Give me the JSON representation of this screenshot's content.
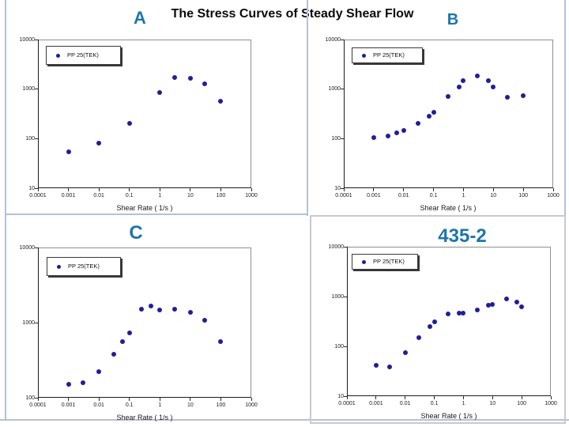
{
  "slide": {
    "title": "The Stress Curves of Steady Shear Flow",
    "heading_color": "#1d76ab",
    "border_color": "#b6c0da",
    "panel_border_color": "#c9c9cf",
    "background": "#ffffff",
    "marker_color": "#1f1f96"
  },
  "chart_data": [
    {
      "type": "scatter",
      "id": "A",
      "panel_label": "A",
      "legend": "PP 25(TEK)",
      "xlabel": "Shear Rate ( 1/s )",
      "xlim": [
        0.0001,
        1000
      ],
      "ylim": [
        10,
        10000
      ],
      "x_ticks": [
        "0.0001",
        "0.001",
        "0.01",
        "0.1",
        "1",
        "10",
        "100",
        "1000"
      ],
      "y_ticks": [
        "10",
        "100",
        "1000",
        "10000"
      ],
      "x": [
        0.001,
        0.01,
        0.1,
        1,
        3,
        10,
        30,
        100
      ],
      "y": [
        55,
        80,
        200,
        850,
        1700,
        1650,
        1300,
        560
      ]
    },
    {
      "type": "scatter",
      "id": "B",
      "panel_label": "B",
      "legend": "PP 25(TEK)",
      "xlabel": "Shear Rate ( 1/s )",
      "xlim": [
        0.0001,
        1000
      ],
      "ylim": [
        10,
        10000
      ],
      "x_ticks": [
        "0.0001",
        "0.001",
        "0.01",
        "0.1",
        "1",
        "10",
        "100",
        "1000"
      ],
      "y_ticks": [
        "10",
        "100",
        "1000",
        "10000"
      ],
      "x": [
        0.001,
        0.003,
        0.006,
        0.01,
        0.03,
        0.07,
        0.1,
        0.3,
        0.7,
        1,
        3,
        7,
        10,
        30,
        100
      ],
      "y": [
        105,
        112,
        130,
        146,
        205,
        285,
        340,
        710,
        1100,
        1480,
        1840,
        1480,
        1100,
        680,
        735
      ]
    },
    {
      "type": "scatter",
      "id": "C",
      "panel_label": "C",
      "legend": "PP 25(TEK)",
      "xlabel": "Shear Rate ( 1/s )",
      "xlim": [
        0.0001,
        1000
      ],
      "ylim": [
        100,
        10000
      ],
      "x_ticks": [
        "0.0001",
        "0.001",
        "0.01",
        "0.1",
        "1",
        "10",
        "100",
        "1000"
      ],
      "y_ticks": [
        "100",
        "1000",
        "10000"
      ],
      "x": [
        0.001,
        0.003,
        0.01,
        0.03,
        0.06,
        0.1,
        0.25,
        0.5,
        1,
        3,
        10,
        30,
        100
      ],
      "y": [
        150,
        160,
        225,
        380,
        565,
        735,
        1500,
        1650,
        1460,
        1500,
        1360,
        1075,
        565
      ]
    },
    {
      "type": "scatter",
      "id": "D",
      "panel_label": "435-2",
      "legend": "PP 25(TEK)",
      "xlabel": "Shear Rate ( 1/s )",
      "xlim": [
        0.0001,
        1000
      ],
      "ylim": [
        10,
        10000
      ],
      "x_ticks": [
        "0.0001",
        "0.001",
        "0.01",
        "0.1",
        "1",
        "10",
        "100",
        "1000"
      ],
      "y_ticks": [
        "10",
        "100",
        "1000",
        "10000"
      ],
      "x": [
        0.001,
        0.003,
        0.01,
        0.03,
        0.07,
        0.1,
        0.3,
        0.7,
        1,
        3,
        7,
        10,
        30,
        70,
        100
      ],
      "y": [
        42,
        38,
        75,
        150,
        250,
        310,
        450,
        460,
        460,
        540,
        670,
        700,
        900,
        775,
        620
      ]
    }
  ]
}
